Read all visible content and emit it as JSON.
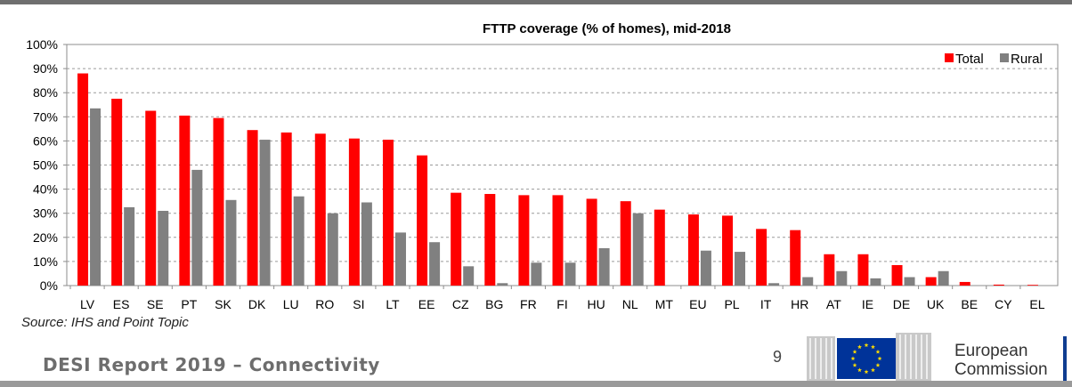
{
  "colors": {
    "total": "#ff0000",
    "rural": "#808080",
    "eu_blue": "#003399",
    "eu_star": "#ffdd00"
  },
  "chart_data": {
    "type": "bar",
    "title": "FTTP coverage (% of homes), mid-2018",
    "categories": [
      "LV",
      "ES",
      "SE",
      "PT",
      "SK",
      "DK",
      "LU",
      "RO",
      "SI",
      "LT",
      "EE",
      "CZ",
      "BG",
      "FR",
      "FI",
      "HU",
      "NL",
      "MT",
      "EU",
      "PL",
      "IT",
      "HR",
      "AT",
      "IE",
      "DE",
      "UK",
      "BE",
      "CY",
      "EL"
    ],
    "series": [
      {
        "name": "Total",
        "color": "#ff0000",
        "values": [
          88,
          77.5,
          72.5,
          70.5,
          69.5,
          64.5,
          63.5,
          63,
          61,
          60.5,
          54,
          38.5,
          38,
          37.5,
          37.5,
          36,
          35,
          31.5,
          29.5,
          29,
          23.5,
          23,
          13,
          13,
          8.5,
          3.5,
          1.5,
          0.4,
          0.3
        ]
      },
      {
        "name": "Rural",
        "color": "#808080",
        "values": [
          73.5,
          32.5,
          31,
          48,
          35.5,
          60.5,
          37,
          30,
          34.5,
          22,
          18,
          8,
          1,
          9.5,
          9.5,
          15.5,
          30,
          0,
          14.5,
          14,
          1,
          3.5,
          6,
          3,
          3.5,
          6,
          0,
          0,
          0
        ]
      }
    ],
    "ylim": [
      0,
      100
    ],
    "yticks": [
      0,
      10,
      20,
      30,
      40,
      50,
      60,
      70,
      80,
      90,
      100
    ],
    "ytick_labels": [
      "0%",
      "10%",
      "20%",
      "30%",
      "40%",
      "50%",
      "60%",
      "70%",
      "80%",
      "90%",
      "100%"
    ],
    "grid": "dashed horizontal",
    "legend": "top-right"
  },
  "source": "Source: IHS and Point Topic",
  "footer": {
    "title": "DESI Report 2019 – Connectivity",
    "page": "9"
  },
  "logo": {
    "line1": "European",
    "line2": "Commission"
  }
}
